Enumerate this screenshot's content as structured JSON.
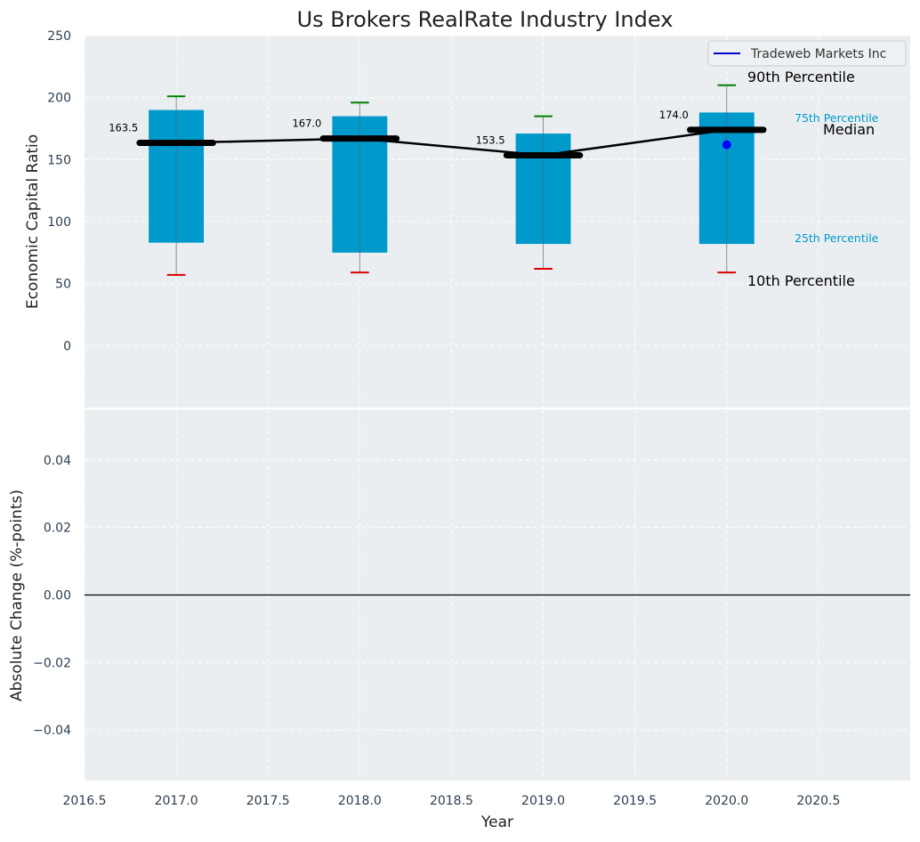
{
  "chart_data": [
    {
      "type": "box",
      "title": "Us Brokers RealRate Industry Index",
      "xlabel": "",
      "ylabel": "Economic Capital Ratio",
      "ylim": [
        -50,
        250
      ],
      "yticks": [
        0,
        50,
        100,
        150,
        200,
        250
      ],
      "xlim": [
        2016.5,
        2021.0
      ],
      "grid": true,
      "legend": {
        "placement": "top-right",
        "entries": [
          {
            "name": "Tradeweb Markets Inc",
            "color": "#0000cc"
          }
        ]
      },
      "categories": [
        2017,
        2018,
        2019,
        2020
      ],
      "p10": [
        57,
        59,
        62,
        59
      ],
      "p25": [
        83,
        75,
        82,
        82
      ],
      "p75": [
        190,
        185,
        171,
        188
      ],
      "p90": [
        201,
        196,
        185,
        210
      ],
      "median": [
        163.5,
        167.0,
        153.5,
        174.0
      ],
      "median_labels": [
        "163.5",
        "167.0",
        "153.5",
        "174.0"
      ],
      "company_points": [
        {
          "x": 2020,
          "y": 162
        }
      ],
      "annotations": {
        "p90": "90th Percentile",
        "p75": "75th Percentile",
        "median": "Median",
        "p25": "25th Percentile",
        "p10": "10th Percentile"
      },
      "colors": {
        "box": "#0099cc",
        "p90_cap": "#008000",
        "p10_cap": "#dd0000",
        "median": "#000000",
        "company": "#0000ff",
        "background": "#eaeef0"
      }
    },
    {
      "type": "line",
      "xlabel": "Year",
      "ylabel": "Absolute Change (%-points)",
      "ylim": [
        -0.055,
        0.055
      ],
      "yticks": [
        -0.04,
        -0.02,
        0.0,
        0.02,
        0.04
      ],
      "ytick_labels": [
        "−0.04",
        "−0.02",
        "0.00",
        "0.02",
        "0.04"
      ],
      "xlim": [
        2016.5,
        2021.0
      ],
      "xticks": [
        2016.5,
        2017.0,
        2017.5,
        2018.0,
        2018.5,
        2019.0,
        2019.5,
        2020.0,
        2020.5
      ],
      "xtick_labels": [
        "2016.5",
        "2017.0",
        "2017.5",
        "2018.0",
        "2018.5",
        "2019.0",
        "2019.5",
        "2020.0",
        "2020.5"
      ],
      "zero_line": 0,
      "grid": true,
      "series": []
    }
  ]
}
